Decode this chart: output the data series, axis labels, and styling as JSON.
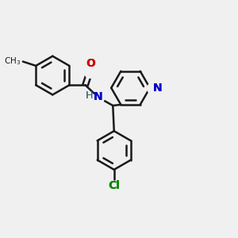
{
  "background_color": "#f0f0f0",
  "bond_color": "#1a1a1a",
  "bond_width": 1.8,
  "atom_colors": {
    "N": "#0000cc",
    "O": "#cc0000",
    "Cl": "#008800",
    "H": "#336666",
    "C": "#1a1a1a"
  },
  "ring_r": 0.082,
  "figsize": [
    3.0,
    3.0
  ],
  "dpi": 100
}
